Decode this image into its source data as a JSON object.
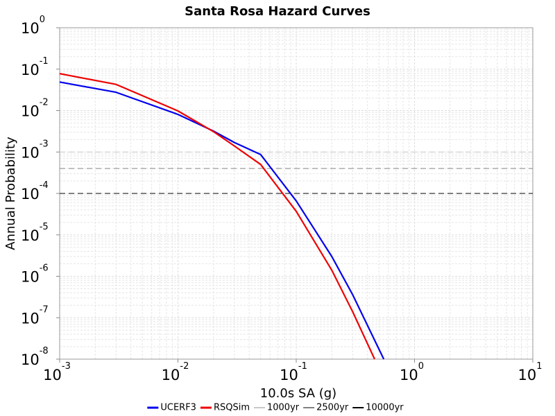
{
  "chart_data": {
    "type": "line",
    "title": "Santa Rosa Hazard Curves",
    "x_label": "10.0s SA (g)",
    "y_label": "Annual Probability",
    "x_log": true,
    "y_log": true,
    "grid": true,
    "minor_grid": true,
    "legend_position": "bottom",
    "xlim": [
      0.001,
      10
    ],
    "ylim": [
      1e-08,
      1
    ],
    "xticks": [
      {
        "value": 0.001,
        "label": "10",
        "exponent": "-3"
      },
      {
        "value": 0.01,
        "label": "10",
        "exponent": "-2"
      },
      {
        "value": 0.1,
        "label": "10",
        "exponent": "-1"
      },
      {
        "value": 1,
        "label": "10",
        "exponent": "0"
      },
      {
        "value": 10,
        "label": "10",
        "exponent": "1"
      }
    ],
    "yticks": [
      {
        "value": 1e-08,
        "label": "10",
        "exponent": "-8"
      },
      {
        "value": 1e-07,
        "label": "10",
        "exponent": "-7"
      },
      {
        "value": 1e-06,
        "label": "10",
        "exponent": "-6"
      },
      {
        "value": 1e-05,
        "label": "10",
        "exponent": "-5"
      },
      {
        "value": 0.0001,
        "label": "10",
        "exponent": "-4"
      },
      {
        "value": 0.001,
        "label": "10",
        "exponent": "-3"
      },
      {
        "value": 0.01,
        "label": "10",
        "exponent": "-2"
      },
      {
        "value": 0.1,
        "label": "10",
        "exponent": "-1"
      },
      {
        "value": 1,
        "label": "10",
        "exponent": "0"
      }
    ],
    "series": [
      {
        "name": "UCERF3",
        "color": "#0000ee",
        "x": [
          0.001,
          0.003,
          0.01,
          0.02,
          0.03,
          0.05,
          0.1,
          0.2,
          0.3,
          0.55
        ],
        "y": [
          0.049,
          0.0277,
          0.0081,
          0.0032,
          0.0017,
          0.00087,
          6.6e-05,
          3e-06,
          3.6e-07,
          1e-08
        ]
      },
      {
        "name": "RSQSim",
        "color": "#ee0000",
        "x": [
          0.001,
          0.003,
          0.01,
          0.02,
          0.03,
          0.05,
          0.1,
          0.2,
          0.3,
          0.46
        ],
        "y": [
          0.078,
          0.043,
          0.0098,
          0.0031,
          0.0014,
          0.0005,
          3.7e-05,
          1.4e-06,
          1.4e-07,
          1e-08
        ]
      }
    ],
    "reference_lines": [
      {
        "name": "1000yr",
        "value": 0.001,
        "color": "#c8c8c8"
      },
      {
        "name": "2500yr",
        "value": 0.0004,
        "color": "#808080"
      },
      {
        "name": "10000yr",
        "value": 0.0001,
        "color": "#000000"
      }
    ]
  }
}
